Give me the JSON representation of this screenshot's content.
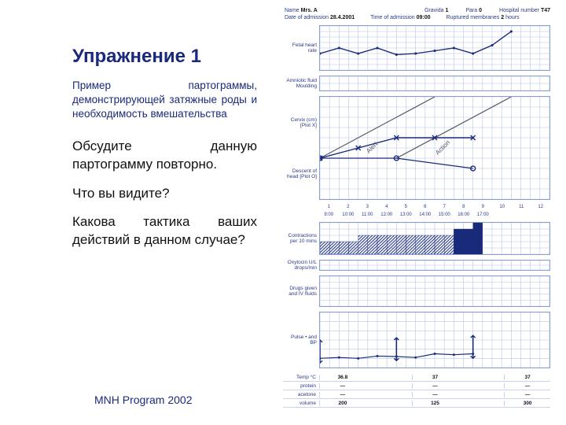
{
  "stripe_color": "#ffffff",
  "left": {
    "title": "Упражнение 1",
    "subtitle": "Пример партограммы, демонстрирующей затяжные роды и необходимость вмешательства",
    "p1": "Обсудите данную партограмму повторно.",
    "p2": "Что вы видите?",
    "p3": "Какова тактика ваших действий в данном случае?",
    "footer": "MNH Program 2002"
  },
  "header": {
    "name_label": "Name",
    "name_val": "Mrs. A",
    "gravida_label": "Gravida",
    "gravida_val": "1",
    "para_label": "Para",
    "para_val": "0",
    "hosp_label": "Hospital number",
    "hosp_val": "T47",
    "date_label": "Date of admission",
    "date_val": "28.4.2001",
    "time_label": "Time of admission",
    "time_val": "09:00",
    "rupt_label": "Ruptured membranes",
    "rupt_val": "2",
    "rupt_unit": "hours"
  },
  "panels": {
    "fhr": {
      "label": "Fetal heart rate",
      "height": 58,
      "ymin": 100,
      "ymax": 180,
      "points": [
        [
          0,
          130
        ],
        [
          1,
          140
        ],
        [
          2,
          130
        ],
        [
          3,
          140
        ],
        [
          4,
          128
        ],
        [
          5,
          130
        ],
        [
          6,
          135
        ],
        [
          7,
          140
        ],
        [
          8,
          130
        ],
        [
          9,
          145
        ],
        [
          10,
          170
        ]
      ],
      "line_color": "#1a2a7a"
    },
    "liquor": {
      "label": "Amniotic fluid Moulding",
      "height": 20
    },
    "cervix": {
      "label": "Cervix (cm) [Plot X]",
      "label2": "Descent of head [Plot O]",
      "height": 132,
      "ymax": 10,
      "alert_label": "Alert",
      "action_label": "Action",
      "cervix_pts": [
        [
          0,
          4
        ],
        [
          2,
          5
        ],
        [
          4,
          6
        ],
        [
          6,
          6
        ],
        [
          8,
          6
        ]
      ],
      "descent_pts": [
        [
          0,
          4
        ],
        [
          4,
          4
        ],
        [
          8,
          3
        ]
      ],
      "line_color": "#1a2a7a",
      "diag_color": "#556"
    },
    "hours": {
      "label": "Hours",
      "ticks": [
        "1",
        "2",
        "3",
        "4",
        "5",
        "6",
        "7",
        "8",
        "9",
        "10",
        "11",
        "12"
      ]
    },
    "time_row": {
      "label": "Time",
      "ticks": [
        "9:00",
        "10:00",
        "11:00",
        "12:00",
        "13:00",
        "14:00",
        "15:00",
        "16:00",
        "17:00",
        "",
        "",
        ""
      ]
    },
    "contractions": {
      "label": "Contractions per 10 mins",
      "height": 42,
      "bars": [
        {
          "x": 0,
          "h": 2,
          "style": "hatch"
        },
        {
          "x": 1,
          "h": 2,
          "style": "hatch"
        },
        {
          "x": 2,
          "h": 2,
          "style": "hatch"
        },
        {
          "x": 3,
          "h": 2,
          "style": "hatch"
        },
        {
          "x": 4,
          "h": 3,
          "style": "hatch"
        },
        {
          "x": 5,
          "h": 3,
          "style": "hatch"
        },
        {
          "x": 6,
          "h": 3,
          "style": "hatch"
        },
        {
          "x": 7,
          "h": 3,
          "style": "hatch"
        },
        {
          "x": 8,
          "h": 3,
          "style": "hatch"
        },
        {
          "x": 9,
          "h": 3,
          "style": "hatch"
        },
        {
          "x": 10,
          "h": 3,
          "style": "hatch"
        },
        {
          "x": 11,
          "h": 3,
          "style": "hatch"
        },
        {
          "x": 12,
          "h": 3,
          "style": "hatch"
        },
        {
          "x": 13,
          "h": 3,
          "style": "hatch"
        },
        {
          "x": 14,
          "h": 4,
          "style": "solid"
        },
        {
          "x": 15,
          "h": 4,
          "style": "solid"
        },
        {
          "x": 16,
          "h": 5,
          "style": "solid"
        }
      ],
      "solid_color": "#1a2a7a",
      "hatch_color": "#1a2a7a"
    },
    "oxytocin": {
      "label": "Oxytocin U/L drops/min",
      "height": 14
    },
    "drugs": {
      "label": "Drugs given and IV fluids",
      "height": 40
    },
    "pulse_bp": {
      "label": "Pulse  •  and  BP",
      "height": 72,
      "ymin": 60,
      "ymax": 180,
      "pulse_pts": [
        [
          0,
          80
        ],
        [
          1,
          82
        ],
        [
          2,
          80
        ],
        [
          3,
          85
        ],
        [
          4,
          84
        ],
        [
          5,
          82
        ],
        [
          6,
          90
        ],
        [
          7,
          88
        ],
        [
          8,
          90
        ]
      ],
      "bp": [
        {
          "x": 0,
          "sys": 120,
          "dia": 70
        },
        {
          "x": 4,
          "sys": 125,
          "dia": 75
        },
        {
          "x": 8,
          "sys": 130,
          "dia": 80
        }
      ],
      "line_color": "#1a2a7a"
    },
    "bottom": {
      "rows": [
        {
          "label": "Temp °C",
          "cells": [
            "36.8",
            "",
            "37",
            "",
            "37"
          ]
        },
        {
          "label": "protein",
          "cells": [
            "—",
            "",
            "—",
            "",
            "—"
          ]
        },
        {
          "label": "acetone",
          "cells": [
            "—",
            "",
            "—",
            "",
            "—"
          ]
        },
        {
          "label": "volume",
          "cells": [
            "200",
            "",
            "125",
            "",
            "300"
          ]
        }
      ],
      "urine_label": "Urine"
    }
  },
  "colors": {
    "grid": "#b8c6e6",
    "border": "#8aa0d0",
    "ink": "#1a2a7a"
  }
}
